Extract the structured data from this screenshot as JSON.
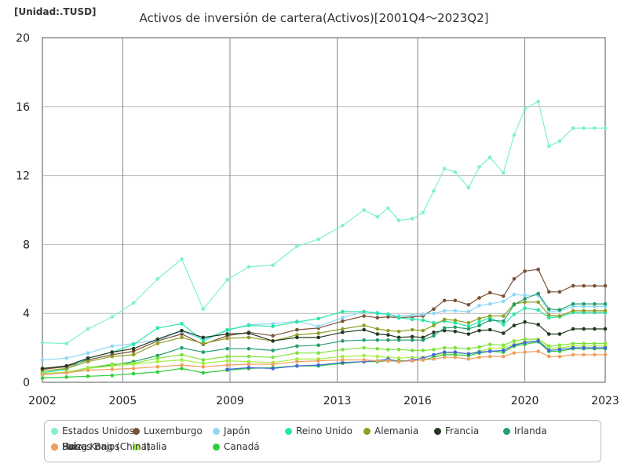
{
  "chart_data": {
    "type": "line",
    "title": "Activos de inversión de cartera(Activos)[2001Q4～2023Q2]",
    "unit_label": "[Unidad:.TUSD]",
    "xlabel": "",
    "ylabel": "",
    "xlim": [
      2002,
      2023
    ],
    "ylim": [
      0,
      20
    ],
    "x_ticks": [
      "2002",
      "2005",
      "2009",
      "2013",
      "2016",
      "2020",
      "2023"
    ],
    "y_ticks": [
      "0",
      "4",
      "8",
      "12",
      "16",
      "20"
    ],
    "grid": true,
    "legend_position": "bottom",
    "x": [
      2002.0,
      2002.9,
      2003.7,
      2004.6,
      2005.4,
      2006.3,
      2007.2,
      2008.0,
      2008.9,
      2009.7,
      2010.6,
      2011.5,
      2012.3,
      2013.2,
      2014.0,
      2014.5,
      2014.9,
      2015.3,
      2015.8,
      2016.2,
      2016.6,
      2017.0,
      2017.4,
      2017.9,
      2018.3,
      2018.7,
      2019.2,
      2019.6,
      2020.0,
      2020.5,
      2020.9,
      2021.3,
      2021.8,
      2022.2,
      2022.6,
      2023.0
    ],
    "series": [
      {
        "name": "Estados Unidos",
        "color": "#7ff2c4",
        "values": [
          2.3,
          2.25,
          3.1,
          3.8,
          4.6,
          6.0,
          7.15,
          4.25,
          5.95,
          6.7,
          6.8,
          7.9,
          8.3,
          9.1,
          10.0,
          9.6,
          10.1,
          9.4,
          9.5,
          9.85,
          11.1,
          12.4,
          12.2,
          11.3,
          12.5,
          13.05,
          12.15,
          14.35,
          15.85,
          16.3,
          13.7,
          14.0,
          14.75,
          14.75,
          14.75,
          14.75
        ]
      },
      {
        "name": "Luxemburgo",
        "color": "#7a5236",
        "values": [
          0.75,
          0.9,
          1.3,
          1.6,
          1.8,
          2.4,
          2.8,
          2.2,
          2.7,
          2.9,
          2.7,
          3.05,
          3.15,
          3.55,
          3.85,
          3.75,
          3.8,
          3.75,
          3.8,
          3.85,
          4.25,
          4.75,
          4.75,
          4.5,
          4.9,
          5.2,
          5.0,
          6.0,
          6.45,
          6.55,
          5.25,
          5.25,
          5.6,
          5.6,
          5.6,
          5.6
        ]
      },
      {
        "name": "Japón",
        "color": "#8fd8f5",
        "values": [
          1.3,
          1.4,
          1.7,
          2.1,
          2.25,
          2.45,
          2.95,
          2.5,
          3.0,
          3.35,
          3.4,
          3.55,
          3.25,
          3.75,
          4.1,
          4.05,
          3.95,
          3.85,
          3.9,
          3.95,
          4.0,
          4.15,
          4.15,
          4.1,
          4.45,
          4.55,
          4.7,
          5.1,
          5.05,
          5.05,
          4.1,
          4.15,
          4.4,
          4.4,
          4.4,
          4.4
        ]
      },
      {
        "name": "Reino Unido",
        "color": "#24e8a8",
        "values": [
          0.55,
          0.75,
          1.4,
          1.75,
          2.2,
          3.15,
          3.4,
          2.4,
          3.05,
          3.3,
          3.25,
          3.5,
          3.7,
          4.1,
          4.1,
          4.0,
          3.95,
          3.75,
          3.65,
          3.6,
          3.45,
          3.55,
          3.45,
          3.25,
          3.5,
          3.75,
          3.35,
          3.95,
          4.3,
          4.2,
          3.75,
          3.8,
          4.05,
          4.05,
          4.05,
          4.05
        ]
      },
      {
        "name": "Alemania",
        "color": "#8fa024",
        "values": [
          0.65,
          0.8,
          1.2,
          1.5,
          1.6,
          2.25,
          2.6,
          2.25,
          2.55,
          2.6,
          2.4,
          2.75,
          2.85,
          3.1,
          3.3,
          3.1,
          3.0,
          2.95,
          3.05,
          3.0,
          3.3,
          3.65,
          3.6,
          3.45,
          3.7,
          3.85,
          3.85,
          4.55,
          4.65,
          4.65,
          3.9,
          3.85,
          4.15,
          4.15,
          4.15,
          4.15
        ]
      },
      {
        "name": "Francia",
        "color": "#243824",
        "values": [
          0.8,
          0.95,
          1.4,
          1.75,
          1.95,
          2.5,
          3.0,
          2.6,
          2.8,
          2.85,
          2.4,
          2.6,
          2.6,
          2.9,
          3.05,
          2.8,
          2.75,
          2.6,
          2.65,
          2.6,
          2.9,
          3.0,
          2.95,
          2.8,
          3.0,
          3.05,
          2.85,
          3.3,
          3.5,
          3.35,
          2.8,
          2.8,
          3.1,
          3.1,
          3.1,
          3.1
        ]
      },
      {
        "name": "Irlanda",
        "color": "#23a06c",
        "values": [
          0.5,
          0.55,
          0.8,
          1.0,
          1.2,
          1.55,
          2.0,
          1.75,
          1.95,
          1.95,
          1.85,
          2.1,
          2.15,
          2.4,
          2.45,
          2.45,
          2.45,
          2.45,
          2.45,
          2.45,
          2.7,
          3.15,
          3.2,
          3.1,
          3.3,
          3.6,
          3.55,
          4.5,
          4.85,
          5.15,
          4.25,
          4.2,
          4.55,
          4.55,
          4.55,
          4.55
        ]
      },
      {
        "name": "Países Bajos",
        "color": "#7ce23c",
        "values": [
          0.45,
          0.55,
          0.85,
          1.05,
          1.1,
          1.4,
          1.6,
          1.3,
          1.5,
          1.5,
          1.45,
          1.7,
          1.7,
          1.9,
          2.0,
          1.95,
          1.9,
          1.9,
          1.85,
          1.85,
          1.9,
          2.0,
          2.0,
          1.95,
          2.05,
          2.2,
          2.15,
          2.4,
          2.5,
          2.5,
          2.1,
          2.15,
          2.25,
          2.25,
          2.25,
          2.25
        ]
      },
      {
        "name": "Italia",
        "color": "#a6ee44",
        "values": [
          0.5,
          0.6,
          0.8,
          0.95,
          1.05,
          1.2,
          1.3,
          1.1,
          1.25,
          1.2,
          1.15,
          1.35,
          1.35,
          1.5,
          1.55,
          1.5,
          1.45,
          1.4,
          1.45,
          1.45,
          1.55,
          1.7,
          1.7,
          1.65,
          1.8,
          1.95,
          2.0,
          2.2,
          2.35,
          2.4,
          2.0,
          2.0,
          2.1,
          2.1,
          2.1,
          2.1
        ]
      },
      {
        "name": "Canadá",
        "color": "#2ecf3c",
        "values": [
          0.25,
          0.3,
          0.35,
          0.4,
          0.5,
          0.6,
          0.8,
          0.55,
          0.7,
          0.8,
          0.85,
          0.95,
          0.95,
          1.1,
          1.2,
          1.2,
          1.25,
          1.25,
          1.25,
          1.3,
          1.45,
          1.6,
          1.6,
          1.55,
          1.7,
          1.8,
          1.75,
          2.1,
          2.2,
          2.35,
          1.8,
          1.8,
          1.95,
          1.95,
          1.95,
          1.95
        ]
      },
      {
        "name": "Hong Kong (China)",
        "color": "#4466dd",
        "values": [
          null,
          null,
          null,
          null,
          null,
          null,
          null,
          null,
          0.75,
          0.85,
          0.8,
          0.95,
          1.0,
          1.15,
          1.2,
          1.25,
          1.35,
          1.2,
          1.3,
          1.4,
          1.6,
          1.75,
          1.75,
          1.65,
          1.75,
          1.8,
          1.85,
          2.15,
          2.3,
          2.4,
          1.85,
          1.9,
          2.0,
          2.0,
          2.0,
          2.0
        ]
      },
      {
        "name": "Suiza",
        "color": "#f0a060",
        "values": [
          0.45,
          0.55,
          0.7,
          0.75,
          0.8,
          0.9,
          1.0,
          0.9,
          1.0,
          1.05,
          1.05,
          1.2,
          1.25,
          1.3,
          1.3,
          1.25,
          1.25,
          1.2,
          1.25,
          1.3,
          1.35,
          1.45,
          1.45,
          1.35,
          1.45,
          1.5,
          1.5,
          1.7,
          1.75,
          1.8,
          1.5,
          1.5,
          1.6,
          1.6,
          1.6,
          1.6
        ]
      }
    ]
  }
}
